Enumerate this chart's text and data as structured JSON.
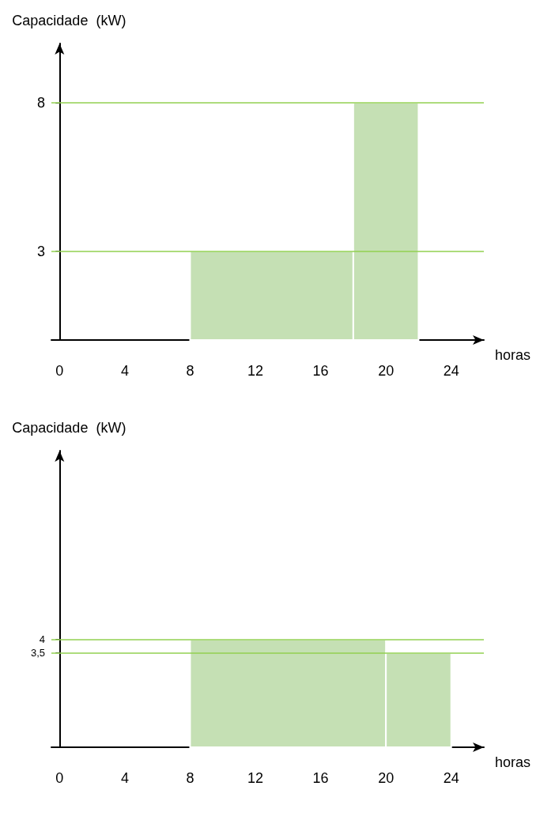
{
  "chart_data": [
    {
      "type": "histogram",
      "xlabel": "horas",
      "ylabel": "Capacidade  (kW)",
      "bins": [
        8,
        18,
        22
      ],
      "values": [
        3,
        8
      ],
      "color": "#c5e0b4",
      "xlim": [
        -0.5,
        26
      ],
      "xticks": [
        0,
        4,
        8,
        12,
        16,
        20,
        24
      ],
      "ylim": [
        0,
        10
      ],
      "yticks": [
        3,
        8
      ],
      "grid": false,
      "ref_lines": [
        {
          "axis": "y",
          "value": 8,
          "label": null,
          "color": "#92d050"
        },
        {
          "axis": "y",
          "value": 3,
          "label": null,
          "color": "#92d050"
        }
      ]
    },
    {
      "type": "histogram",
      "xlabel": "horas",
      "ylabel": "Capacidade  (kW)",
      "bins": [
        8,
        20,
        24
      ],
      "values": [
        4,
        3.5
      ],
      "color": "#c5e0b4",
      "xlim": [
        -0.5,
        26
      ],
      "xticks": [
        0,
        4,
        8,
        12,
        16,
        20,
        24
      ],
      "ylim": [
        0,
        11
      ],
      "yticks": [
        {
          "value": 3.5,
          "label": "3,5"
        },
        4
      ],
      "grid": false,
      "ref_lines": [
        {
          "axis": "y",
          "value": 4,
          "label": null,
          "color": "#92d050"
        },
        {
          "axis": "y",
          "value": 3.5,
          "label": null,
          "color": "#92d050"
        }
      ]
    }
  ]
}
